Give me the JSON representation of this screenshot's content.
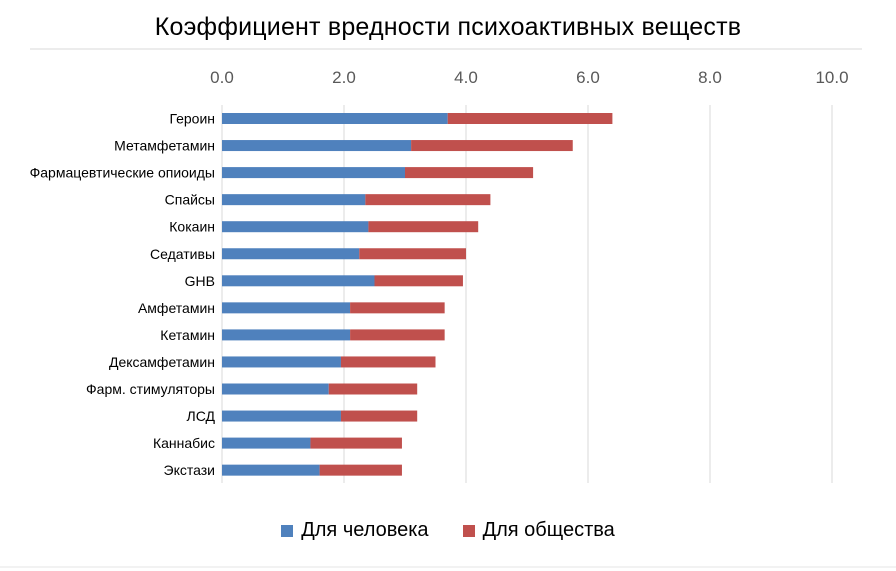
{
  "chart_data": {
    "type": "bar",
    "orientation": "horizontal",
    "stacked": true,
    "title": "Коэффициент вредности психоактивных веществ",
    "categories": [
      "Героин",
      "Метамфетамин",
      "Фармацевтические опиоиды",
      "Спайсы",
      "Кокаин",
      "Седативы",
      "GHB",
      "Амфетамин",
      "Кетамин",
      "Дексамфетамин",
      "Фарм. стимуляторы",
      "ЛСД",
      "Каннабис",
      "Экстази"
    ],
    "series": [
      {
        "name": "Для человека",
        "color": "#4f81bd",
        "values": [
          3.7,
          3.1,
          3.0,
          2.35,
          2.4,
          2.25,
          2.5,
          2.1,
          2.1,
          1.95,
          1.75,
          1.95,
          1.45,
          1.6
        ]
      },
      {
        "name": "Для общества",
        "color": "#c0504d",
        "values": [
          2.7,
          2.65,
          2.1,
          2.05,
          1.8,
          1.75,
          1.45,
          1.55,
          1.55,
          1.55,
          1.45,
          1.25,
          1.5,
          1.35
        ]
      }
    ],
    "xlim": [
      0,
      10
    ],
    "xticks": [
      "0.0",
      "2.0",
      "4.0",
      "6.0",
      "8.0",
      "10.0"
    ],
    "xaxis_position": "top",
    "grid": "vertical",
    "legend": "bottom"
  }
}
